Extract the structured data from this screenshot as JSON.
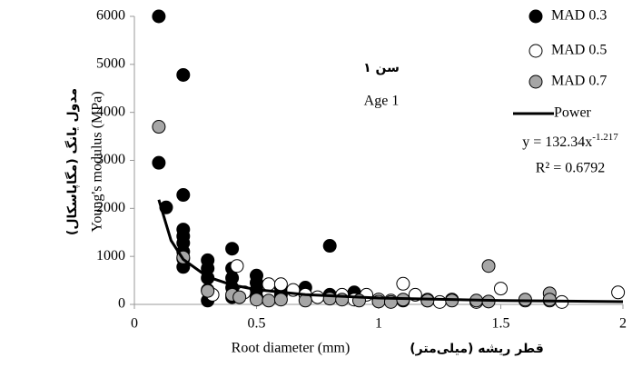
{
  "chart_data": {
    "type": "scatter",
    "title": "سن ۱",
    "subtitle": "Age 1",
    "x_label": "Root diameter (mm)",
    "x_label_fa": "قطر ریشه (میلی‌متر)",
    "y_label": "Young's modulus (MPa)",
    "y_label_fa": "مدول یانگ (مگاپاسکال)",
    "xlim": [
      0,
      2
    ],
    "xticks": [
      0,
      0.5,
      1,
      1.5,
      2
    ],
    "ylim": [
      0,
      6000
    ],
    "yticks": [
      0,
      1000,
      2000,
      3000,
      4000,
      5000,
      6000
    ],
    "grid": false,
    "legend": "top-right",
    "equation": "y = 132.34x",
    "equation_exponent": "-1.217",
    "r_squared": "R² = 0.6792",
    "series": [
      {
        "name": "MAD 0.3",
        "type": "scatter",
        "color": "#000000",
        "x": [
          0.1,
          0.2,
          0.1,
          0.2,
          0.13,
          0.2,
          0.2,
          0.2,
          0.2,
          0.2,
          0.2,
          0.3,
          0.3,
          0.3,
          0.3,
          0.3,
          0.4,
          0.4,
          0.4,
          0.4,
          0.4,
          0.5,
          0.5,
          0.5,
          0.5,
          0.6,
          0.6,
          0.7,
          0.7,
          0.8,
          0.8,
          0.9,
          0.9,
          1.0,
          1.1,
          1.2,
          1.3
        ],
        "values": [
          6000,
          4780,
          2950,
          2280,
          2020,
          1560,
          1420,
          1280,
          1100,
          950,
          780,
          920,
          750,
          550,
          300,
          80,
          1160,
          750,
          550,
          350,
          150,
          600,
          450,
          300,
          150,
          350,
          200,
          350,
          200,
          1220,
          200,
          250,
          150,
          100,
          80,
          80,
          100
        ]
      },
      {
        "name": "MAD 0.5",
        "type": "scatter",
        "color": "#ffffff",
        "x": [
          0.32,
          0.42,
          0.45,
          0.55,
          0.6,
          0.65,
          0.7,
          0.75,
          0.85,
          0.95,
          1.0,
          1.05,
          1.1,
          1.15,
          1.2,
          1.3,
          1.4,
          1.5,
          1.6,
          1.7,
          1.75,
          1.98,
          1.25,
          0.9
        ],
        "values": [
          200,
          800,
          250,
          420,
          420,
          300,
          200,
          150,
          200,
          200,
          100,
          80,
          430,
          200,
          100,
          100,
          50,
          330,
          80,
          80,
          50,
          250,
          50,
          100
        ]
      },
      {
        "name": "MAD 0.7",
        "type": "scatter",
        "color": "#a6a6a6",
        "x": [
          0.1,
          0.2,
          0.3,
          0.4,
          0.43,
          0.5,
          0.55,
          0.6,
          0.7,
          0.8,
          0.85,
          0.92,
          1.0,
          1.05,
          1.1,
          1.2,
          1.3,
          1.4,
          1.45,
          1.45,
          1.6,
          1.7,
          1.7
        ],
        "values": [
          3700,
          980,
          280,
          200,
          150,
          100,
          80,
          100,
          80,
          120,
          100,
          80,
          60,
          50,
          100,
          80,
          80,
          80,
          800,
          60,
          100,
          230,
          100
        ]
      },
      {
        "name": "Power",
        "type": "line",
        "color": "#000000",
        "x": [
          0.1,
          0.15,
          0.2,
          0.3,
          0.4,
          0.5,
          0.7,
          1.0,
          1.5,
          2.0
        ],
        "values": [
          2181,
          1332,
          938,
          573,
          404,
          308,
          204,
          132,
          81,
          57
        ]
      }
    ]
  }
}
